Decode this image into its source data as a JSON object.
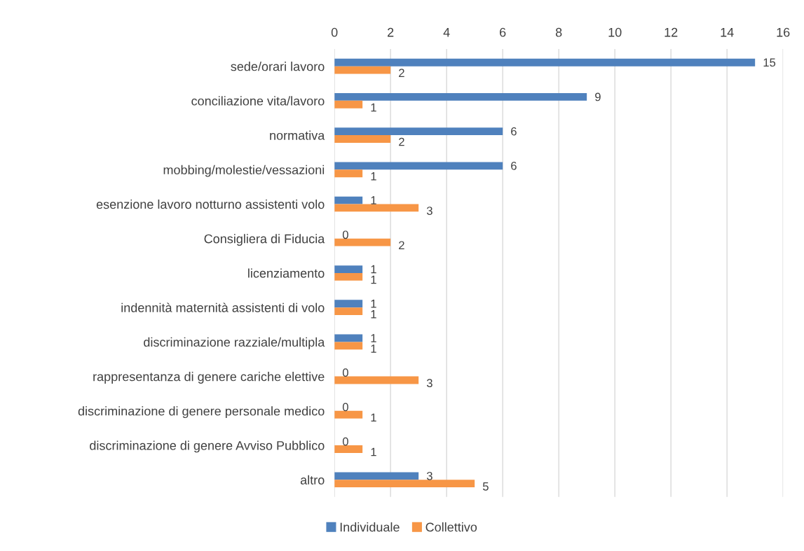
{
  "chart_data": {
    "type": "bar",
    "orientation": "horizontal",
    "categories": [
      "sede/orari lavoro",
      "conciliazione vita/lavoro",
      "normativa",
      "mobbing/molestie/vessazioni",
      "esenzione lavoro notturno assistenti volo",
      "Consigliera di Fiducia",
      "licenziamento",
      "indennità maternità assistenti di volo",
      "discriminazione razziale/multipla",
      "rappresentanza di genere cariche elettive",
      "discriminazione di genere personale medico",
      "discriminazione di genere Avviso Pubblico",
      "altro"
    ],
    "series": [
      {
        "name": "Individuale",
        "color": "#4f81bd",
        "values": [
          15,
          9,
          6,
          6,
          1,
          0,
          1,
          1,
          1,
          0,
          0,
          0,
          3
        ]
      },
      {
        "name": "Collettivo",
        "color": "#f79646",
        "values": [
          2,
          1,
          2,
          1,
          3,
          2,
          1,
          1,
          1,
          3,
          1,
          1,
          5
        ]
      }
    ],
    "xlim": [
      0,
      16
    ],
    "xticks": [
      0,
      2,
      4,
      6,
      8,
      10,
      12,
      14,
      16
    ],
    "grid": "x",
    "legend": "bottom",
    "data_labels": true
  }
}
